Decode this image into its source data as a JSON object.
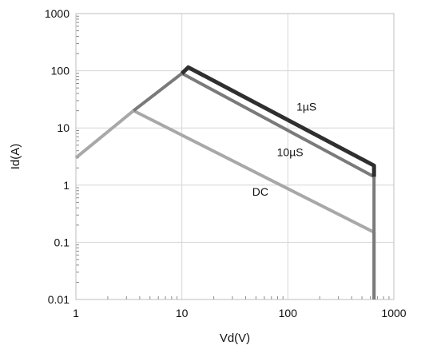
{
  "chart_data": {
    "type": "line",
    "xlabel": "Vd(V)",
    "ylabel": "Id(A)",
    "xscale": "log",
    "yscale": "log",
    "xlim": [
      1,
      1000
    ],
    "ylim": [
      0.01,
      1000
    ],
    "xticks": [
      1,
      10,
      100,
      1000
    ],
    "yticks": [
      0.01,
      0.1,
      1,
      10,
      100,
      1000
    ],
    "xtick_labels": [
      "1",
      "10",
      "100",
      "1000"
    ],
    "ytick_labels": [
      "0.01",
      "0.1",
      "1",
      "10",
      "100",
      "1000"
    ],
    "grid": true,
    "legend": "none",
    "series": [
      {
        "name": "DC",
        "color": "#a8a8a8",
        "points": [
          [
            1,
            3
          ],
          [
            3.5,
            20
          ],
          [
            650,
            0.15
          ],
          [
            650,
            0.01
          ]
        ]
      },
      {
        "name": "10µS",
        "color": "#7a7a7a",
        "points": [
          [
            3.5,
            20
          ],
          [
            10,
            90
          ],
          [
            650,
            1.4
          ],
          [
            650,
            0.01
          ]
        ]
      },
      {
        "name": "1µS",
        "color": "#2f2f2f",
        "points": [
          [
            10,
            90
          ],
          [
            11.5,
            115
          ],
          [
            650,
            2.2
          ],
          [
            650,
            1.4
          ]
        ]
      }
    ],
    "annotations": [
      {
        "text": "1µS",
        "x": 150,
        "y": 20
      },
      {
        "text": "10µS",
        "x": 105,
        "y": 3.2
      },
      {
        "text": "DC",
        "x": 55,
        "y": 0.65
      }
    ]
  }
}
